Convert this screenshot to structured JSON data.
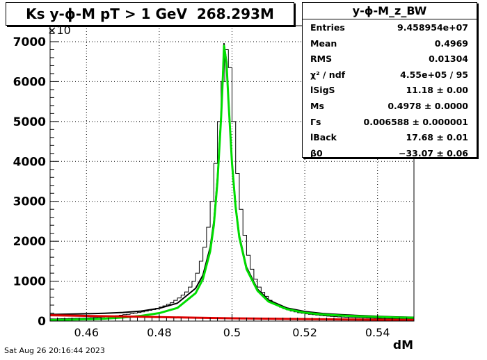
{
  "title": "Ks y-ϕ-M pT > 1 GeV  268.293M",
  "date": "Sat Aug 26 20:16:44 2023",
  "stats": {
    "name": "y-ϕ-M_z_BW",
    "rows": [
      {
        "key": "Entries",
        "value": "9.458954e+07"
      },
      {
        "key": "Mean",
        "value": "0.4969"
      },
      {
        "key": "RMS",
        "value": "0.01304"
      },
      {
        "key": "χ² / ndf",
        "value": "4.55e+05 / 95"
      },
      {
        "key": "lSigS",
        "value": "11.18 ± 0.00"
      },
      {
        "key": "Ms",
        "value": "0.4978 ± 0.0000"
      },
      {
        "key": "Γs",
        "value": "0.006588 ± 0.000001"
      },
      {
        "key": "lBack",
        "value": "17.68 ± 0.01"
      },
      {
        "key": "β0",
        "value": "−33.07 ± 0.06"
      }
    ]
  },
  "chart_data": {
    "type": "line",
    "xlabel": "dM",
    "ylabel": "",
    "y_multiplier": "×10",
    "xlim": [
      0.45,
      0.55
    ],
    "ylim": [
      0,
      7400
    ],
    "x_ticks": [
      "0.46",
      "0.48",
      "0.5",
      "0.52",
      "0.54"
    ],
    "y_ticks": [
      "0",
      "1000",
      "2000",
      "3000",
      "4000",
      "5000",
      "6000",
      "7000"
    ],
    "grid": true,
    "colors": {
      "histogram": "#000000",
      "total_fit": "#000000",
      "signal_fit": "#00dd00",
      "background_fit": "#dd0000"
    },
    "series": [
      {
        "name": "histogram",
        "style": "step",
        "x": [
          0.4505,
          0.4515,
          0.4525,
          0.4535,
          0.4545,
          0.4555,
          0.4565,
          0.4575,
          0.4585,
          0.4595,
          0.4605,
          0.4615,
          0.4625,
          0.4635,
          0.4645,
          0.4655,
          0.4665,
          0.4675,
          0.4685,
          0.4695,
          0.4705,
          0.4715,
          0.4725,
          0.4735,
          0.4745,
          0.4755,
          0.4765,
          0.4775,
          0.4785,
          0.4795,
          0.4805,
          0.4815,
          0.4825,
          0.4835,
          0.4845,
          0.4855,
          0.4865,
          0.4875,
          0.4885,
          0.4895,
          0.4905,
          0.4915,
          0.4925,
          0.4935,
          0.4945,
          0.4955,
          0.4965,
          0.4975,
          0.4985,
          0.4995,
          0.5005,
          0.5015,
          0.5025,
          0.5035,
          0.5045,
          0.5055,
          0.5065,
          0.5075,
          0.5085,
          0.5095,
          0.5105,
          0.5115,
          0.5125,
          0.5135,
          0.5145,
          0.5155,
          0.5165,
          0.5175,
          0.5185,
          0.5195,
          0.5205,
          0.5215,
          0.5225,
          0.5235,
          0.5245,
          0.5255,
          0.5265,
          0.5275,
          0.5285,
          0.5295,
          0.5305,
          0.5315,
          0.5325,
          0.5335,
          0.5345,
          0.5355,
          0.5365,
          0.5375,
          0.5385,
          0.5395,
          0.5405,
          0.5415,
          0.5425,
          0.5435,
          0.5445,
          0.5455,
          0.5465,
          0.5475,
          0.5485,
          0.5495
        ],
        "y": [
          55,
          55,
          58,
          60,
          62,
          65,
          68,
          70,
          72,
          75,
          80,
          85,
          90,
          95,
          100,
          110,
          118,
          125,
          135,
          148,
          160,
          170,
          185,
          200,
          215,
          230,
          250,
          270,
          290,
          320,
          350,
          380,
          420,
          460,
          520,
          580,
          650,
          730,
          850,
          1000,
          1200,
          1500,
          1850,
          2350,
          3000,
          3950,
          5000,
          6000,
          6800,
          6350,
          5000,
          3700,
          2800,
          2150,
          1650,
          1300,
          1050,
          850,
          720,
          620,
          520,
          450,
          400,
          350,
          310,
          280,
          250,
          230,
          210,
          195,
          180,
          170,
          160,
          150,
          140,
          130,
          125,
          118,
          112,
          105,
          100,
          95,
          92,
          88,
          85,
          82,
          80,
          77,
          75,
          72,
          70,
          68,
          66,
          64,
          62,
          60,
          58,
          56,
          55,
          54
        ]
      },
      {
        "name": "total_fit",
        "style": "line",
        "x": [
          0.45,
          0.455,
          0.46,
          0.465,
          0.47,
          0.475,
          0.48,
          0.485,
          0.49,
          0.492,
          0.494,
          0.495,
          0.496,
          0.497,
          0.4975,
          0.4978,
          0.4985,
          0.499,
          0.5,
          0.501,
          0.502,
          0.504,
          0.507,
          0.51,
          0.515,
          0.52,
          0.525,
          0.53,
          0.535,
          0.54,
          0.545,
          0.55
        ],
        "y": [
          165,
          175,
          185,
          195,
          215,
          250,
          320,
          450,
          820,
          1150,
          1850,
          2500,
          3600,
          5200,
          6250,
          6950,
          6500,
          5600,
          4000,
          2900,
          2150,
          1350,
          800,
          530,
          330,
          240,
          190,
          160,
          140,
          120,
          105,
          95
        ]
      },
      {
        "name": "signal_fit",
        "style": "line",
        "x": [
          0.45,
          0.455,
          0.46,
          0.465,
          0.47,
          0.475,
          0.48,
          0.485,
          0.49,
          0.492,
          0.494,
          0.495,
          0.496,
          0.497,
          0.4975,
          0.4978,
          0.4985,
          0.499,
          0.5,
          0.501,
          0.502,
          0.504,
          0.507,
          0.51,
          0.515,
          0.52,
          0.525,
          0.53,
          0.535,
          0.54,
          0.545,
          0.55
        ],
        "y": [
          25,
          35,
          45,
          60,
          90,
          130,
          200,
          330,
          700,
          1050,
          1750,
          2400,
          3500,
          5100,
          6150,
          6900,
          6450,
          5550,
          3950,
          2850,
          2100,
          1300,
          760,
          490,
          300,
          210,
          165,
          140,
          120,
          105,
          92,
          85
        ]
      },
      {
        "name": "background_fit",
        "style": "line",
        "x": [
          0.45,
          0.46,
          0.47,
          0.48,
          0.49,
          0.5,
          0.51,
          0.52,
          0.53,
          0.54,
          0.55
        ],
        "y": [
          145,
          130,
          115,
          100,
          85,
          70,
          60,
          50,
          42,
          35,
          28
        ]
      }
    ]
  }
}
